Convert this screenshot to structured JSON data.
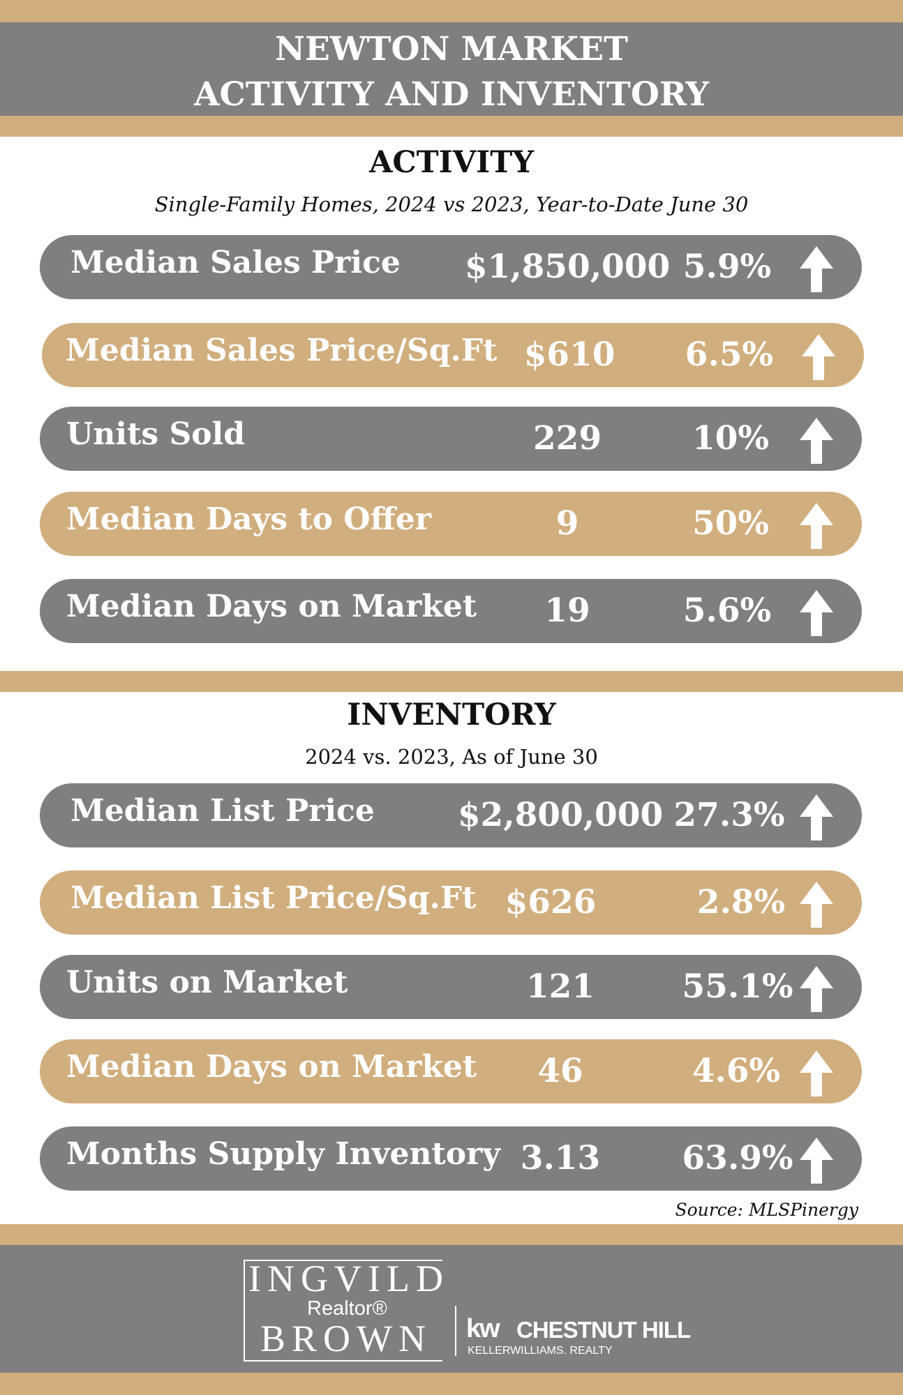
{
  "header": {
    "title_line1": "NEWTON MARKET",
    "title_line2": "ACTIVITY AND INVENTORY"
  },
  "activity": {
    "heading": "ACTIVITY",
    "subtitle": "Single-Family Homes, 2024 vs 2023, Year-to-Date June 30",
    "rows": [
      {
        "label": "Median Sales Price",
        "value": "$1,850,000",
        "change": "5.9%",
        "direction": "up"
      },
      {
        "label": "Median Sales Price/Sq.Ft",
        "value": "$610",
        "change": "6.5%",
        "direction": "up"
      },
      {
        "label": "Units Sold",
        "value": "229",
        "change": "10%",
        "direction": "up"
      },
      {
        "label": "Median Days to Offer",
        "value": "9",
        "change": "50%",
        "direction": "up"
      },
      {
        "label": "Median Days on Market",
        "value": "19",
        "change": "5.6%",
        "direction": "up"
      }
    ]
  },
  "inventory": {
    "heading": "INVENTORY",
    "subtitle": "2024 vs. 2023, As of June 30",
    "rows": [
      {
        "label": "Median List Price",
        "value": "$2,800,000",
        "change": "27.3%",
        "direction": "up"
      },
      {
        "label": "Median List Price/Sq.Ft",
        "value": "$626",
        "change": "2.8%",
        "direction": "up"
      },
      {
        "label": "Units on Market",
        "value": "121",
        "change": "55.1%",
        "direction": "up"
      },
      {
        "label": "Median Days on Market",
        "value": "46",
        "change": "4.6%",
        "direction": "up"
      },
      {
        "label": "Months Supply Inventory",
        "value": "3.13",
        "change": "63.9%",
        "direction": "up"
      }
    ]
  },
  "source": "Source:  MLSPinergy",
  "footer": {
    "name_line1": "INGVILD",
    "realtor": "Realtor®",
    "name_line2": "BROWN",
    "kw_mark": "kw",
    "kw_office": "CHESTNUT HILL",
    "kw_company": "KELLERWILLIAMS. REALTY"
  },
  "colors": {
    "tan": "#d1ae7d",
    "grey": "#7f7f7f",
    "text_on_pill": "#ffffff"
  }
}
